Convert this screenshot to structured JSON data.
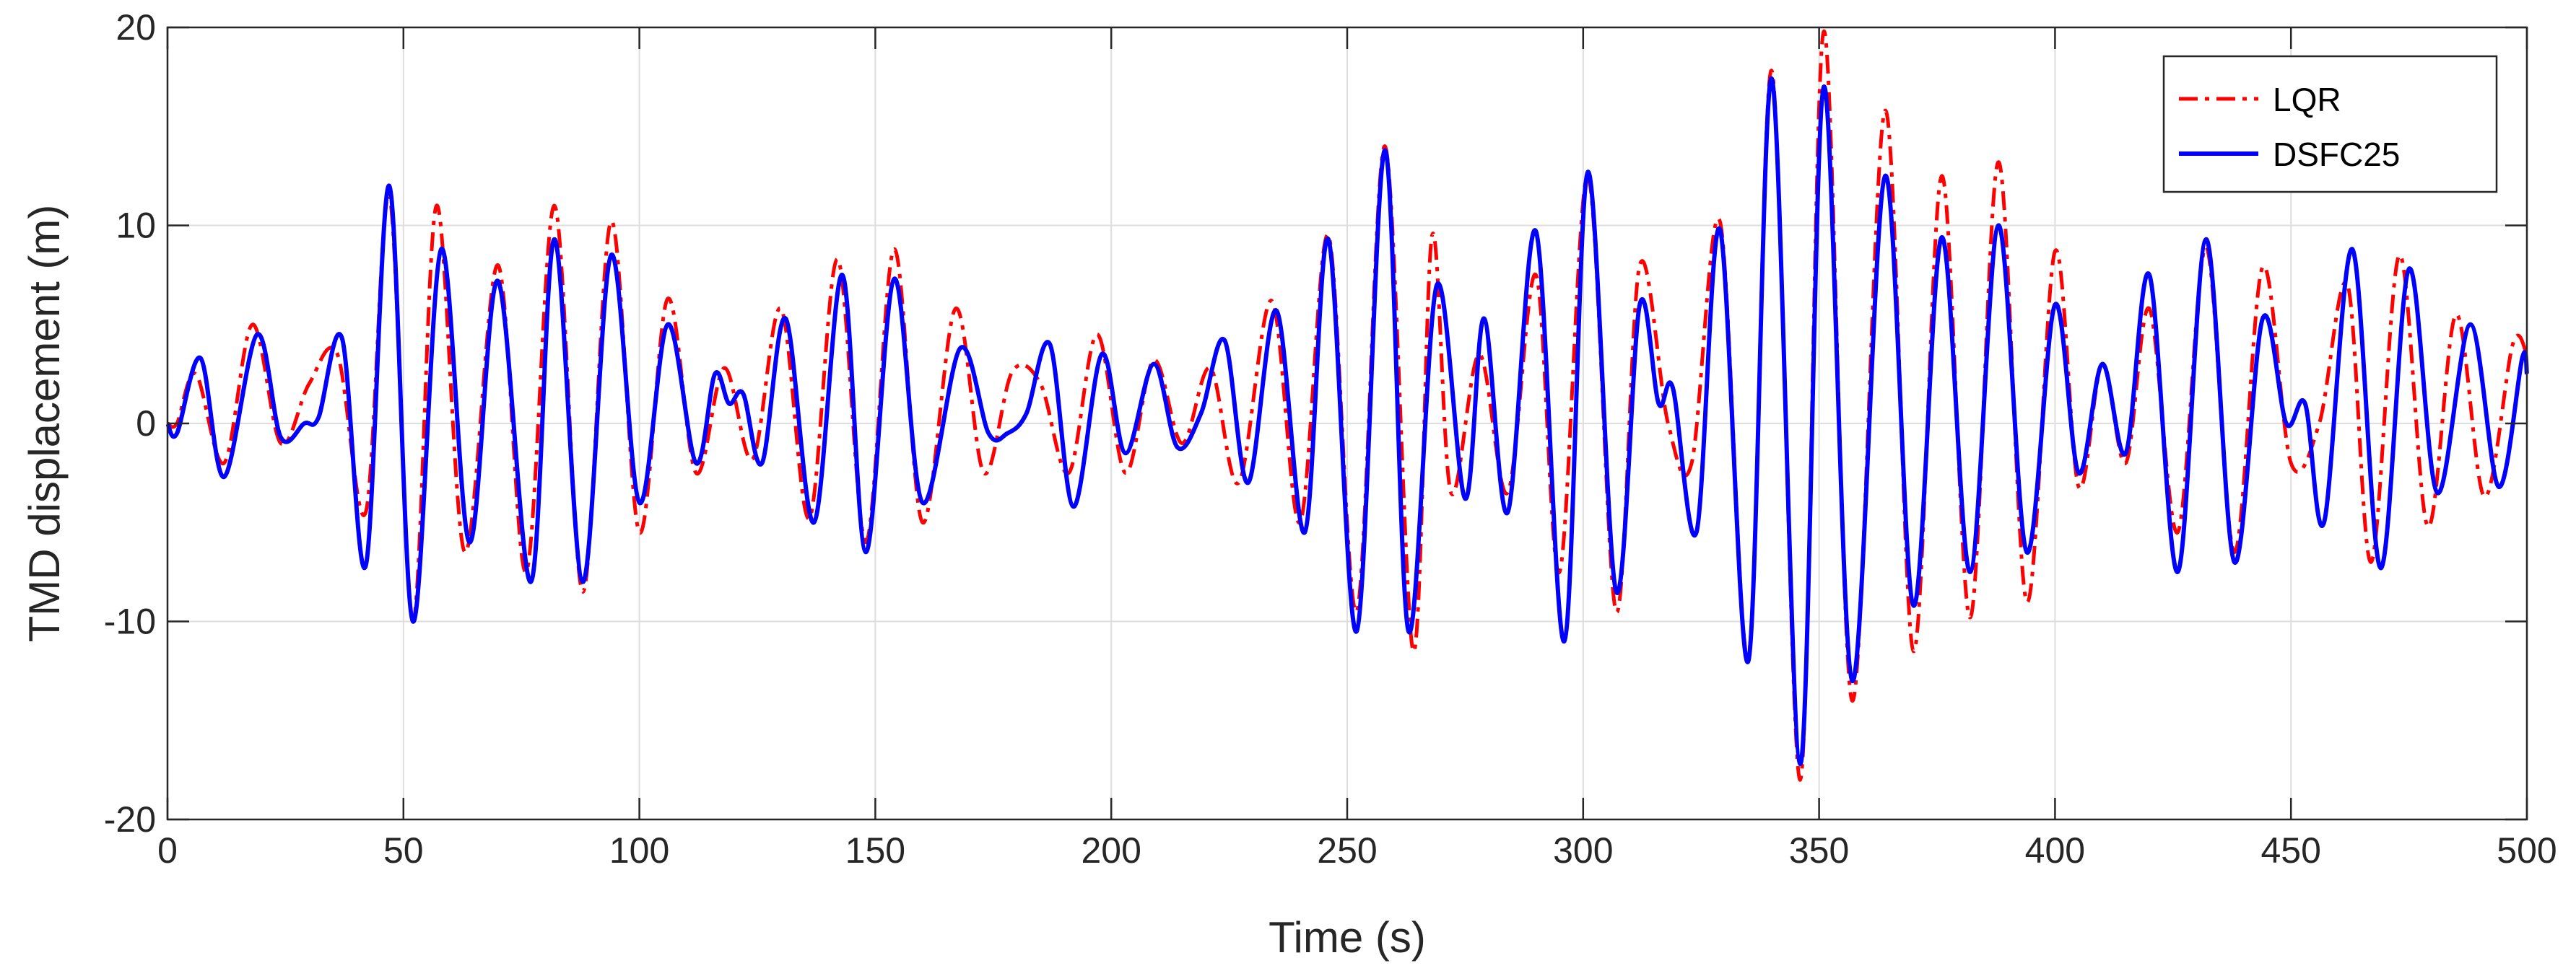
{
  "chart_data": {
    "type": "line",
    "title": "",
    "xlabel": "Time (s)",
    "ylabel": "TMD displacement (m)",
    "xlim": [
      0,
      500
    ],
    "ylim": [
      -20,
      20
    ],
    "xticks": [
      0,
      50,
      100,
      150,
      200,
      250,
      300,
      350,
      400,
      450,
      500
    ],
    "yticks": [
      -20,
      -10,
      0,
      10,
      20
    ],
    "xtick_labels": [
      "0",
      "50",
      "100",
      "150",
      "200",
      "250",
      "300",
      "350",
      "400",
      "450",
      "500"
    ],
    "ytick_labels": [
      "-20",
      "-10",
      "0",
      "10",
      "20"
    ],
    "grid": true,
    "legend_position": "top-right",
    "series": [
      {
        "name": "LQR",
        "color": "#ff0000",
        "style": "dash-dot",
        "x": [
          0,
          2,
          6,
          12,
          18,
          24,
          30,
          36,
          42,
          47,
          52,
          57,
          63,
          70,
          76,
          82,
          88,
          94,
          100,
          106,
          112,
          118,
          124,
          130,
          136,
          142,
          148,
          154,
          160,
          167,
          173,
          179,
          185,
          191,
          197,
          203,
          209,
          215,
          221,
          227,
          234,
          240,
          246,
          252,
          258,
          264,
          268,
          272,
          278,
          284,
          290,
          295,
          301,
          307,
          312,
          318,
          323,
          329,
          335,
          340,
          346,
          351,
          357,
          364,
          370,
          376,
          382,
          388,
          394,
          400,
          405,
          410,
          415,
          420,
          426,
          432,
          438,
          444,
          450,
          456,
          462,
          467,
          473,
          479,
          485,
          491,
          497,
          500
        ],
        "y": [
          0,
          0,
          2.5,
          -2,
          5,
          -1,
          2,
          3.5,
          -4.5,
          11.5,
          -10,
          11,
          -6.5,
          8,
          -7.5,
          11,
          -8.5,
          10.2,
          -5.5,
          6.3,
          -2.5,
          2.8,
          -1.8,
          5.8,
          -4.8,
          8.3,
          -6,
          8.8,
          -5,
          5.8,
          -2.5,
          2.6,
          2,
          -2.5,
          4.5,
          -2.5,
          3.2,
          -1,
          2.8,
          -3,
          6.2,
          -5,
          9.5,
          -9.5,
          14,
          -11.5,
          9.5,
          -3.5,
          3.5,
          -3.5,
          7.5,
          -7.5,
          12.5,
          -9.5,
          8,
          0,
          -2,
          10.2,
          -11.8,
          17.8,
          -18,
          19.8,
          -14,
          15.8,
          -11.5,
          12.5,
          -9.8,
          13.2,
          -9,
          8.7,
          -3.2,
          3,
          -2,
          5.8,
          -5.5,
          8.9,
          -6.5,
          7.9,
          -2,
          0,
          7,
          -7,
          8.5,
          -5.2,
          5.5,
          -3.7,
          4,
          3.5
        ]
      },
      {
        "name": "DSFC25",
        "color": "#0000ff",
        "style": "solid",
        "x": [
          0,
          2,
          7,
          12,
          19,
          24,
          29,
          32,
          37,
          42,
          47,
          52,
          58,
          64,
          70,
          77,
          82,
          88,
          94,
          100,
          106,
          112,
          116,
          119,
          122,
          126,
          131,
          137,
          143,
          148,
          154,
          160,
          168,
          174,
          178,
          182,
          187,
          192,
          198,
          203,
          209,
          214,
          219,
          224,
          229,
          235,
          241,
          246,
          252,
          258,
          263,
          269,
          275,
          279,
          284,
          290,
          296,
          301,
          307,
          312,
          316,
          319,
          324,
          329,
          335,
          340,
          346,
          351,
          357,
          364,
          370,
          376,
          382,
          388,
          394,
          400,
          405,
          410,
          415,
          420,
          426,
          432,
          438,
          444,
          449,
          453,
          457,
          463,
          469,
          475,
          481,
          488,
          494,
          499,
          500
        ],
        "y": [
          0,
          -0.5,
          3.3,
          -2.7,
          4.5,
          -0.7,
          0,
          0.3,
          4.3,
          -7.2,
          12,
          -10,
          8.8,
          -6,
          7.2,
          -8,
          9.3,
          -8,
          8.5,
          -4,
          5,
          -2,
          2.5,
          1,
          1.5,
          -2,
          5.3,
          -5,
          7.5,
          -6.5,
          7.3,
          -4,
          3.8,
          -0.5,
          -0.5,
          0.5,
          4,
          -4.2,
          3.5,
          -1.5,
          3,
          -1.2,
          0.5,
          4.2,
          -3,
          5.7,
          -5.5,
          9.3,
          -10.5,
          13.8,
          -10.5,
          7,
          -3.8,
          5.3,
          -4.5,
          9.7,
          -11,
          12.7,
          -8.5,
          6,
          1,
          1.8,
          -5.5,
          9.8,
          -12,
          17.4,
          -17.2,
          17,
          -13,
          12.5,
          -9.2,
          9.4,
          -7.5,
          10,
          -6.5,
          6,
          -2.5,
          3,
          -1.5,
          7.5,
          -7.5,
          9.3,
          -7,
          5.3,
          0,
          1,
          -5,
          8.8,
          -7.3,
          7.8,
          -3.5,
          5,
          -3.2,
          3.3,
          2.5
        ]
      }
    ]
  }
}
